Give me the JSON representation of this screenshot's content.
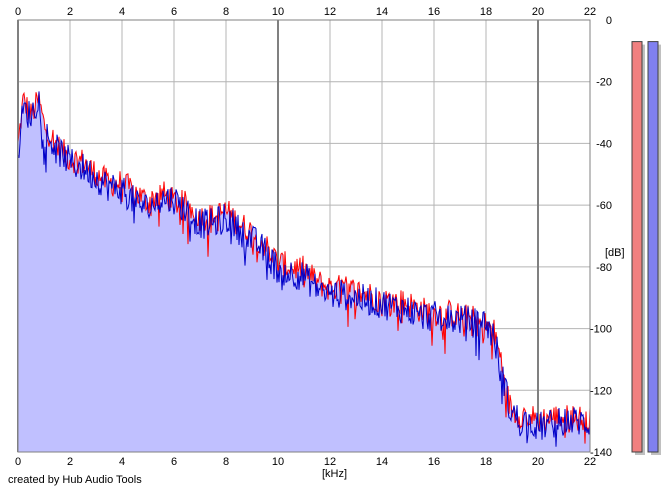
{
  "credit": "created by Hub Audio Tools",
  "chart_data": {
    "type": "area",
    "title": "",
    "xlabel": "[kHz]",
    "ylabel": "[dB]",
    "xlim": [
      0,
      22
    ],
    "ylim": [
      -140,
      0
    ],
    "x_ticks": [
      0,
      2,
      4,
      6,
      8,
      10,
      12,
      14,
      16,
      18,
      20,
      22
    ],
    "y_ticks": [
      0,
      -20,
      -40,
      -60,
      -80,
      -100,
      -120,
      -140
    ],
    "grid": true,
    "colors": {
      "fill": "#c0c0ff",
      "series_red": "#ff0000",
      "series_blue": "#0000c8",
      "meter_red": "#f08080",
      "meter_blue": "#8080f0",
      "grid": "#b4b4b4",
      "grid_major": "#808080"
    },
    "series": [
      {
        "color": "red",
        "x": [
          0.0,
          0.2,
          0.5,
          0.8,
          1.0,
          1.5,
          2.0,
          2.5,
          3.0,
          3.5,
          4.0,
          4.5,
          5.0,
          5.5,
          6.0,
          6.5,
          7.0,
          7.5,
          8.0,
          8.5,
          9.0,
          9.5,
          10.0,
          10.5,
          11.0,
          11.5,
          12.0,
          12.5,
          13.0,
          13.5,
          14.0,
          14.5,
          15.0,
          15.5,
          16.0,
          16.5,
          17.0,
          17.5,
          18.0,
          18.3,
          18.6,
          18.9,
          19.2,
          19.5,
          20.0,
          20.5,
          21.0,
          21.5,
          22.0
        ],
        "values": [
          -40,
          -25,
          -30,
          -25,
          -33,
          -40,
          -44,
          -45,
          -49,
          -52,
          -52,
          -55,
          -58,
          -55,
          -58,
          -59,
          -63,
          -63,
          -61,
          -65,
          -68,
          -72,
          -78,
          -79,
          -80,
          -84,
          -86,
          -86,
          -87,
          -88,
          -90,
          -90,
          -91,
          -93,
          -94,
          -94,
          -95,
          -96,
          -98,
          -100,
          -110,
          -124,
          -127,
          -127,
          -129,
          -128,
          -128,
          -128,
          -129
        ]
      },
      {
        "color": "blue",
        "x": [
          0.0,
          0.2,
          0.5,
          0.8,
          1.0,
          1.5,
          2.0,
          2.5,
          3.0,
          3.5,
          4.0,
          4.5,
          5.0,
          5.5,
          6.0,
          6.5,
          7.0,
          7.5,
          8.0,
          8.5,
          9.0,
          9.5,
          10.0,
          10.5,
          11.0,
          11.5,
          12.0,
          12.5,
          13.0,
          13.5,
          14.0,
          14.5,
          15.0,
          15.5,
          16.0,
          16.5,
          17.0,
          17.5,
          18.0,
          18.3,
          18.6,
          18.9,
          19.2,
          19.5,
          20.0,
          20.5,
          21.0,
          21.5,
          22.0
        ],
        "values": [
          -42,
          -28,
          -30,
          -24,
          -35,
          -41,
          -45,
          -47,
          -50,
          -53,
          -54,
          -58,
          -60,
          -57,
          -57,
          -61,
          -65,
          -65,
          -63,
          -67,
          -70,
          -74,
          -80,
          -81,
          -82,
          -86,
          -88,
          -88,
          -89,
          -90,
          -91,
          -92,
          -93,
          -95,
          -95,
          -96,
          -96,
          -97,
          -97,
          -102,
          -112,
          -125,
          -128,
          -129,
          -131,
          -130,
          -129,
          -129,
          -130
        ]
      }
    ],
    "meters": [
      {
        "color": "red",
        "value": -7
      },
      {
        "color": "blue",
        "value": -7
      }
    ]
  }
}
